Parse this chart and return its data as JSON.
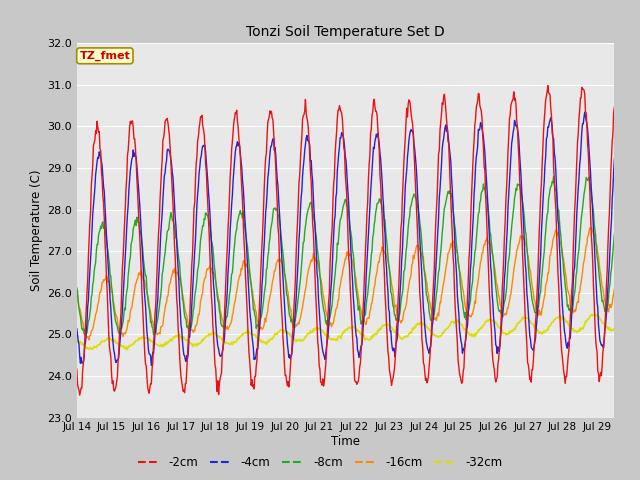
{
  "title": "Tonzi Soil Temperature Set D",
  "ylabel": "Soil Temperature (C)",
  "xlabel": "Time",
  "annotation": "TZ_fmet",
  "ylim": [
    23.0,
    32.0
  ],
  "yticks": [
    23.0,
    24.0,
    25.0,
    26.0,
    27.0,
    28.0,
    29.0,
    30.0,
    31.0,
    32.0
  ],
  "xtick_labels": [
    "Jul 14",
    "Jul 15",
    "Jul 16",
    "Jul 17",
    "Jul 18",
    "Jul 19",
    "Jul 20",
    "Jul 21",
    "Jul 22",
    "Jul 23",
    "Jul 24",
    "Jul 25",
    "Jul 26",
    "Jul 27",
    "Jul 28",
    "Jul 29"
  ],
  "colors": {
    "-2cm": "#ee1111",
    "-4cm": "#2222dd",
    "-8cm": "#22aa22",
    "-16cm": "#ff8800",
    "-32cm": "#dddd00"
  },
  "legend_labels": [
    "-2cm",
    "-4cm",
    "-8cm",
    "-16cm",
    "-32cm"
  ],
  "fig_bg": "#c8c8c8",
  "plot_bg": "#e8e8e8",
  "grid_color": "#ffffff"
}
